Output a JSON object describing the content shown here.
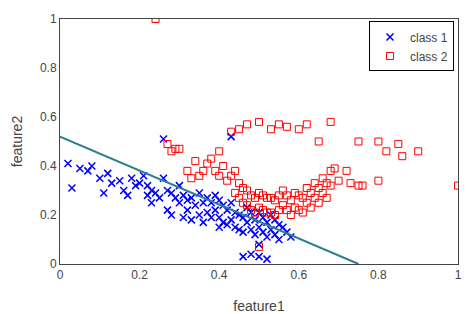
{
  "chart_data": {
    "type": "scatter",
    "xlabel": "feature1",
    "ylabel": "feature2",
    "xlim": [
      0.0,
      1.0
    ],
    "ylim": [
      0.0,
      1.0
    ],
    "xticks": [
      0,
      0.2,
      0.4,
      0.6,
      0.8,
      1
    ],
    "yticks": [
      0,
      0.2,
      0.4,
      0.6,
      0.8,
      1
    ],
    "grid": false,
    "legend": "upper right",
    "series": [
      {
        "name": "class 1",
        "type": "scatter",
        "color": "blue",
        "marker": "x",
        "x": [
          0.02,
          0.03,
          0.05,
          0.07,
          0.08,
          0.1,
          0.11,
          0.12,
          0.13,
          0.15,
          0.16,
          0.17,
          0.18,
          0.19,
          0.2,
          0.21,
          0.22,
          0.22,
          0.23,
          0.23,
          0.24,
          0.25,
          0.26,
          0.27,
          0.27,
          0.28,
          0.28,
          0.29,
          0.3,
          0.3,
          0.31,
          0.31,
          0.32,
          0.32,
          0.33,
          0.33,
          0.34,
          0.35,
          0.35,
          0.36,
          0.36,
          0.37,
          0.37,
          0.38,
          0.38,
          0.39,
          0.39,
          0.4,
          0.4,
          0.4,
          0.41,
          0.41,
          0.42,
          0.42,
          0.43,
          0.43,
          0.44,
          0.44,
          0.45,
          0.45,
          0.46,
          0.46,
          0.47,
          0.47,
          0.48,
          0.48,
          0.49,
          0.49,
          0.5,
          0.5,
          0.5,
          0.51,
          0.51,
          0.52,
          0.52,
          0.53,
          0.53,
          0.54,
          0.54,
          0.55,
          0.55,
          0.56,
          0.57,
          0.58,
          0.43,
          0.26,
          0.46,
          0.48,
          0.5,
          0.52
        ],
        "values": [
          0.41,
          0.31,
          0.39,
          0.38,
          0.4,
          0.35,
          0.29,
          0.37,
          0.33,
          0.34,
          0.3,
          0.28,
          0.35,
          0.32,
          0.33,
          0.36,
          0.32,
          0.28,
          0.25,
          0.3,
          0.29,
          0.27,
          0.35,
          0.3,
          0.22,
          0.29,
          0.2,
          0.27,
          0.32,
          0.25,
          0.28,
          0.19,
          0.26,
          0.22,
          0.27,
          0.18,
          0.24,
          0.29,
          0.2,
          0.25,
          0.17,
          0.27,
          0.21,
          0.25,
          0.19,
          0.28,
          0.22,
          0.26,
          0.19,
          0.15,
          0.24,
          0.17,
          0.22,
          0.16,
          0.25,
          0.18,
          0.21,
          0.15,
          0.2,
          0.14,
          0.19,
          0.13,
          0.23,
          0.17,
          0.21,
          0.14,
          0.18,
          0.12,
          0.21,
          0.15,
          0.08,
          0.19,
          0.13,
          0.17,
          0.11,
          0.2,
          0.14,
          0.18,
          0.12,
          0.16,
          0.1,
          0.15,
          0.13,
          0.11,
          0.52,
          0.51,
          0.03,
          0.04,
          0.03,
          0.02
        ]
      },
      {
        "name": "class 2",
        "type": "scatter",
        "color": "red",
        "marker": "square-open",
        "x": [
          0.24,
          0.27,
          0.28,
          0.29,
          0.3,
          0.32,
          0.33,
          0.34,
          0.35,
          0.36,
          0.37,
          0.38,
          0.39,
          0.4,
          0.4,
          0.41,
          0.42,
          0.43,
          0.44,
          0.44,
          0.45,
          0.45,
          0.46,
          0.46,
          0.47,
          0.47,
          0.48,
          0.48,
          0.49,
          0.49,
          0.5,
          0.5,
          0.51,
          0.51,
          0.52,
          0.52,
          0.53,
          0.53,
          0.54,
          0.54,
          0.55,
          0.55,
          0.56,
          0.56,
          0.57,
          0.57,
          0.58,
          0.58,
          0.59,
          0.59,
          0.6,
          0.6,
          0.61,
          0.61,
          0.62,
          0.62,
          0.63,
          0.63,
          0.64,
          0.64,
          0.65,
          0.65,
          0.66,
          0.66,
          0.67,
          0.67,
          0.68,
          0.68,
          0.69,
          0.7,
          0.72,
          0.73,
          0.75,
          0.76,
          0.8,
          0.82,
          0.85,
          0.86,
          0.9,
          1.0,
          0.43,
          0.45,
          0.47,
          0.5,
          0.53,
          0.55,
          0.57,
          0.6,
          0.62,
          0.65,
          0.68,
          0.5,
          0.75,
          0.8
        ],
        "values": [
          1.0,
          0.49,
          0.46,
          0.47,
          0.47,
          0.38,
          0.35,
          0.42,
          0.36,
          0.38,
          0.41,
          0.43,
          0.38,
          0.46,
          0.36,
          0.4,
          0.34,
          0.36,
          0.38,
          0.29,
          0.33,
          0.27,
          0.31,
          0.25,
          0.3,
          0.24,
          0.28,
          0.22,
          0.27,
          0.21,
          0.29,
          0.23,
          0.28,
          0.22,
          0.27,
          0.21,
          0.27,
          0.21,
          0.26,
          0.2,
          0.28,
          0.22,
          0.3,
          0.24,
          0.28,
          0.22,
          0.26,
          0.2,
          0.29,
          0.23,
          0.28,
          0.22,
          0.27,
          0.21,
          0.31,
          0.25,
          0.29,
          0.23,
          0.33,
          0.27,
          0.31,
          0.25,
          0.35,
          0.29,
          0.33,
          0.27,
          0.38,
          0.32,
          0.39,
          0.34,
          0.38,
          0.33,
          0.32,
          0.32,
          0.34,
          0.46,
          0.49,
          0.44,
          0.46,
          0.32,
          0.54,
          0.55,
          0.57,
          0.58,
          0.55,
          0.57,
          0.56,
          0.55,
          0.57,
          0.5,
          0.58,
          0.07,
          0.5,
          0.5
        ]
      },
      {
        "type": "line",
        "color": "#2d7d8e",
        "line_style": "solid",
        "x": [
          0.0,
          0.75
        ],
        "values": [
          0.52,
          0.0
        ]
      }
    ]
  }
}
